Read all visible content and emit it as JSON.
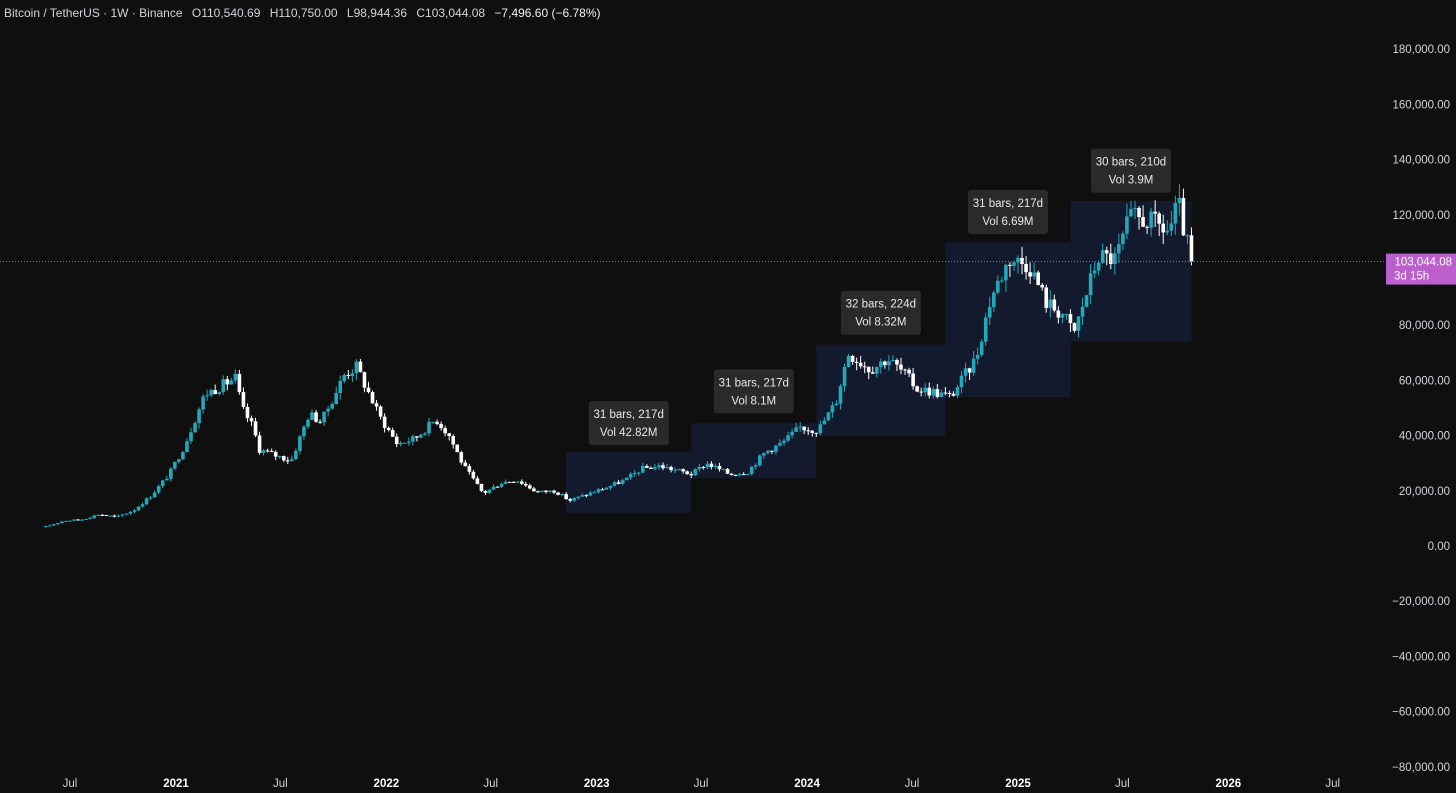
{
  "header": {
    "symbol": "Bitcoin / TetherUS · 1W · Binance",
    "o_label": "O",
    "o_value": "110,540.69",
    "h_label": "H",
    "h_value": "110,750.00",
    "l_label": "L",
    "l_value": "98,944.36",
    "c_label": "C",
    "c_value": "103,044.08",
    "change": "−7,496.60 (−6.78%)"
  },
  "current_price": {
    "value": 103044.08,
    "label": "103,044.08",
    "countdown": "3d 15h"
  },
  "colors": {
    "background": "#0f0f0f",
    "up": "#22a8b8",
    "down": "#ffffff",
    "box_fill": "#131a2e",
    "tooltip_bg": "#2a2a2a",
    "price_tag": "#ba5fcb",
    "price_line": "#9c6fb5"
  },
  "chart_data": {
    "type": "candlestick",
    "title": "Bitcoin / TetherUS · 1W · Binance",
    "yaxis": {
      "range": [
        -80000,
        190000
      ],
      "ticks": [
        180000,
        160000,
        140000,
        120000,
        100000,
        80000,
        60000,
        40000,
        20000,
        0,
        -20000,
        -40000,
        -60000,
        -80000
      ],
      "tick_labels": [
        "180,000.00",
        "160,000.00",
        "140,000.00",
        "120,000.00",
        "",
        "80,000.00",
        "60,000.00",
        "40,000.00",
        "20,000.00",
        "0.00",
        "−20,000.00",
        "−40,000.00",
        "−60,000.00",
        "−80,000.00"
      ]
    },
    "xaxis": {
      "range": [
        "2020-05-20",
        "2026-09-15"
      ],
      "ticks": [
        {
          "date": "2020-07-01",
          "label": "Jul",
          "bold": false
        },
        {
          "date": "2021-01-01",
          "label": "2021",
          "bold": true
        },
        {
          "date": "2021-07-01",
          "label": "Jul",
          "bold": false
        },
        {
          "date": "2022-01-01",
          "label": "2022",
          "bold": true
        },
        {
          "date": "2022-07-01",
          "label": "Jul",
          "bold": false
        },
        {
          "date": "2023-01-01",
          "label": "2023",
          "bold": true
        },
        {
          "date": "2023-07-01",
          "label": "Jul",
          "bold": false
        },
        {
          "date": "2024-01-01",
          "label": "2024",
          "bold": true
        },
        {
          "date": "2024-07-01",
          "label": "Jul",
          "bold": false
        },
        {
          "date": "2025-01-01",
          "label": "2025",
          "bold": true
        },
        {
          "date": "2025-07-01",
          "label": "Jul",
          "bold": false
        },
        {
          "date": "2026-01-01",
          "label": "2026",
          "bold": true
        },
        {
          "date": "2026-07-01",
          "label": "Jul",
          "bold": false
        }
      ]
    },
    "series": [
      {
        "path": [
          [
            "2020-05-20",
            7000
          ],
          [
            "2020-06-20",
            9200
          ],
          [
            "2020-07-20",
            9500
          ],
          [
            "2020-08-20",
            11500
          ],
          [
            "2020-09-20",
            10500
          ],
          [
            "2020-10-20",
            13000
          ],
          [
            "2020-11-20",
            18500
          ],
          [
            "2020-12-20",
            26000
          ],
          [
            "2021-01-15",
            36000
          ],
          [
            "2021-02-20",
            55000
          ],
          [
            "2021-03-20",
            58000
          ],
          [
            "2021-04-15",
            61000
          ],
          [
            "2021-04-25",
            50000
          ],
          [
            "2021-05-15",
            43000
          ],
          [
            "2021-05-25",
            35000
          ],
          [
            "2021-06-20",
            33000
          ],
          [
            "2021-07-20",
            31000
          ],
          [
            "2021-08-20",
            48000
          ],
          [
            "2021-09-10",
            45000
          ],
          [
            "2021-10-20",
            62000
          ],
          [
            "2021-11-10",
            65000
          ],
          [
            "2021-11-28",
            57000
          ],
          [
            "2021-12-20",
            47000
          ],
          [
            "2022-01-20",
            37000
          ],
          [
            "2022-02-20",
            39000
          ],
          [
            "2022-03-28",
            46000
          ],
          [
            "2022-04-20",
            40000
          ],
          [
            "2022-05-15",
            29000
          ],
          [
            "2022-06-18",
            19000
          ],
          [
            "2022-07-20",
            23000
          ],
          [
            "2022-08-15",
            24000
          ],
          [
            "2022-09-20",
            19500
          ],
          [
            "2022-10-20",
            20000
          ],
          [
            "2022-11-15",
            16500
          ],
          [
            "2023-01-15",
            21000
          ],
          [
            "2023-02-20",
            24000
          ],
          [
            "2023-03-20",
            28000
          ],
          [
            "2023-04-20",
            29000
          ],
          [
            "2023-06-15",
            26000
          ],
          [
            "2023-07-10",
            30000
          ],
          [
            "2023-08-20",
            26000
          ],
          [
            "2023-09-20",
            27000
          ],
          [
            "2023-10-20",
            34000
          ],
          [
            "2023-11-20",
            37500
          ],
          [
            "2023-12-20",
            43000
          ],
          [
            "2024-01-20",
            42000
          ],
          [
            "2024-02-20",
            52000
          ],
          [
            "2024-03-12",
            70000
          ],
          [
            "2024-04-20",
            64000
          ],
          [
            "2024-05-20",
            68000
          ],
          [
            "2024-06-20",
            62000
          ],
          [
            "2024-07-10",
            57000
          ],
          [
            "2024-08-05",
            56000
          ],
          [
            "2024-09-06",
            54000
          ],
          [
            "2024-10-20",
            68000
          ],
          [
            "2024-11-15",
            90000
          ],
          [
            "2024-12-17",
            104000
          ],
          [
            "2025-01-20",
            102000
          ],
          [
            "2025-02-20",
            88000
          ],
          [
            "2025-03-20",
            84000
          ],
          [
            "2025-04-08",
            77000
          ],
          [
            "2025-05-20",
            105000
          ],
          [
            "2025-06-20",
            104000
          ],
          [
            "2025-07-14",
            119000
          ],
          [
            "2025-08-14",
            118000
          ],
          [
            "2025-09-20",
            114000
          ],
          [
            "2025-10-06",
            124000
          ],
          [
            "2025-10-20",
            110000
          ],
          [
            "2025-11-03",
            103044
          ]
        ]
      }
    ],
    "measurements": [
      {
        "start": "2022-11-09",
        "end": "2023-06-14",
        "low": 12000,
        "high": 34000,
        "bars": "31 bars, 217d",
        "vol": "Vol 42.82M",
        "label_y": 38000
      },
      {
        "start": "2023-06-14",
        "end": "2024-01-17",
        "low": 24500,
        "high": 44500,
        "bars": "31 bars, 217d",
        "vol": "Vol 8.1M",
        "label_y": 49500
      },
      {
        "start": "2024-01-17",
        "end": "2024-08-28",
        "low": 40000,
        "high": 73000,
        "bars": "32 bars, 224d",
        "vol": "Vol 8.32M",
        "label_y": 78000
      },
      {
        "start": "2024-08-28",
        "end": "2025-04-02",
        "low": 54000,
        "high": 110000,
        "bars": "31 bars, 217d",
        "vol": "Vol 6.69M",
        "label_y": 114500
      },
      {
        "start": "2025-04-02",
        "end": "2025-10-29",
        "low": 74000,
        "high": 125000,
        "bars": "30 bars, 210d",
        "vol": "Vol 3.9M",
        "label_y": 129500
      }
    ]
  }
}
